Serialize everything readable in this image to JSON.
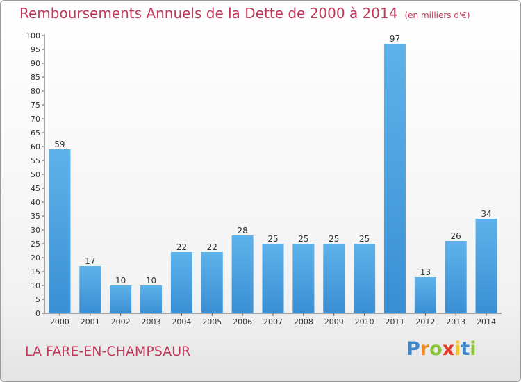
{
  "header": {
    "title": "Remboursements Annuels de la Dette de 2000 à 2014",
    "unit": "(en milliers d'€)"
  },
  "footer": {
    "place": "LA FARE-EN-CHAMPSAUR",
    "brand": "Proxiti",
    "brand_letters": [
      "P",
      "r",
      "o",
      "x",
      "i",
      "t",
      "i"
    ],
    "brand_colors": [
      "#3f86c8",
      "#f08a1c",
      "#8bc53f",
      "#e23c2a",
      "#f2c02e",
      "#3f86c8",
      "#8bc53f"
    ]
  },
  "chart_data": {
    "type": "bar",
    "title": "Remboursements Annuels de la Dette de 2000 à 2014",
    "xlabel": "",
    "ylabel": "",
    "categories": [
      "2000",
      "2001",
      "2002",
      "2003",
      "2004",
      "2005",
      "2006",
      "2007",
      "2008",
      "2009",
      "2010",
      "2011",
      "2012",
      "2013",
      "2014"
    ],
    "values": [
      59,
      17,
      10,
      10,
      22,
      22,
      28,
      25,
      25,
      25,
      25,
      97,
      13,
      26,
      34
    ],
    "ylim": [
      0,
      100
    ],
    "ytick_step": 5,
    "grid": false,
    "bar_color": "#3a8fd4",
    "bar_color_light": "#5eb2ea"
  }
}
